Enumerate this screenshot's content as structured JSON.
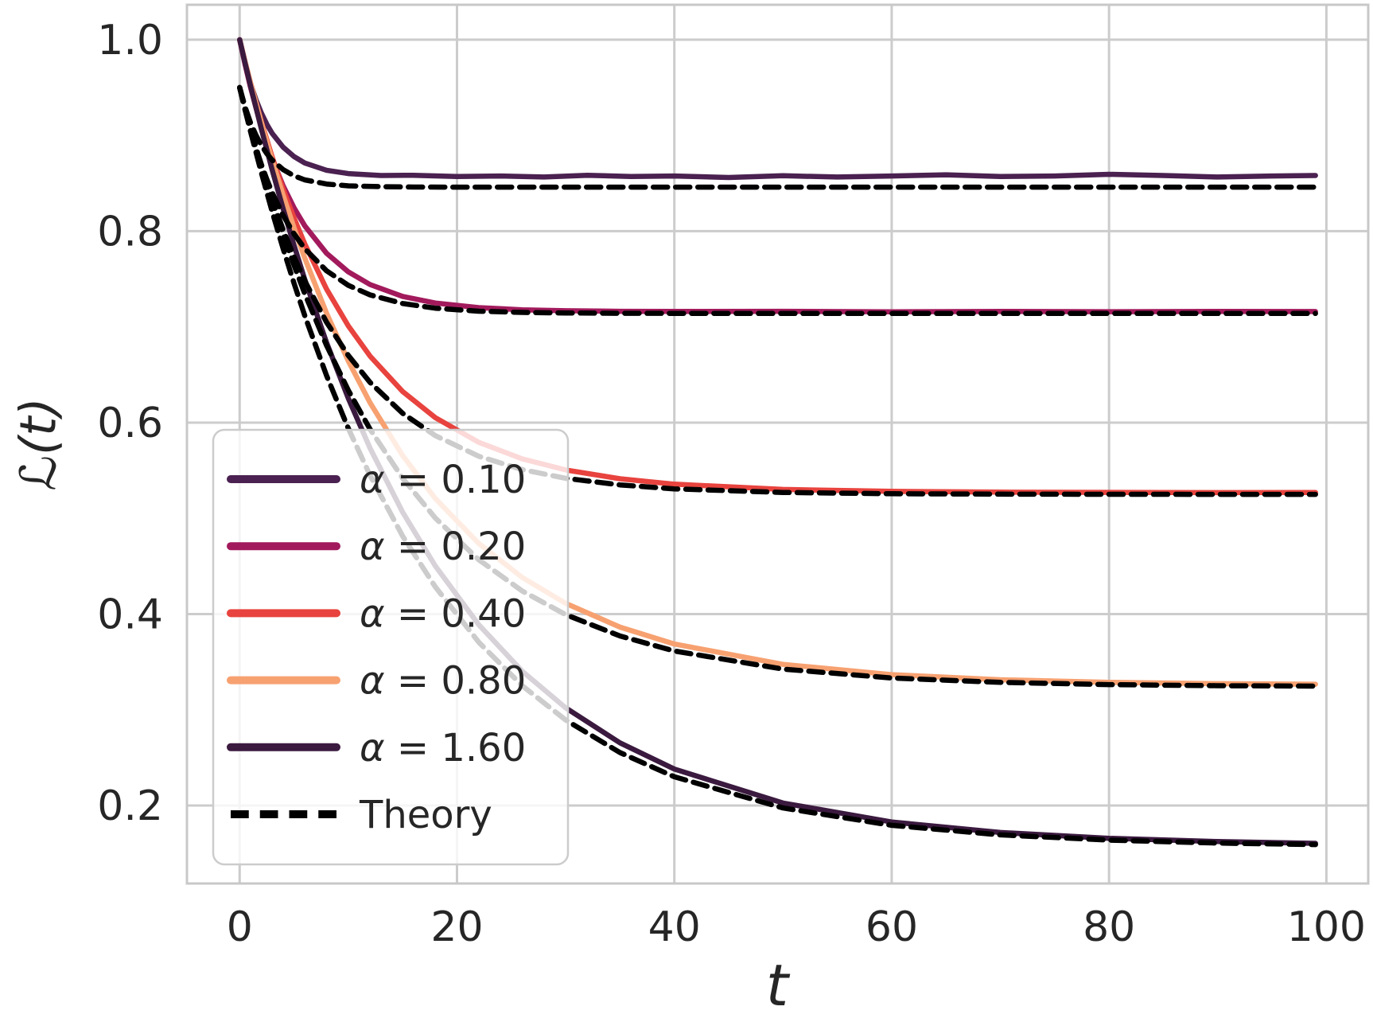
{
  "figure": {
    "background": "#ffffff",
    "text_color": "#262626",
    "grid_color": "#cccccc",
    "spine_color": "#c8c8c8",
    "legend_fill": "rgba(255,255,255,0.8)",
    "legend_border": "#cccccc"
  },
  "chart_data": {
    "type": "line",
    "title": "",
    "xlabel": "t",
    "ylabel": "ℒ(t)",
    "grid": true,
    "legend_position": "lower left",
    "xlim": [
      -4.85,
      103.85
    ],
    "ylim": [
      0.1185,
      1.0365
    ],
    "x_ticks": [
      {
        "v": 0,
        "label": "0"
      },
      {
        "v": 20,
        "label": "20"
      },
      {
        "v": 40,
        "label": "40"
      },
      {
        "v": 60,
        "label": "60"
      },
      {
        "v": 80,
        "label": "80"
      },
      {
        "v": 100,
        "label": "100"
      }
    ],
    "y_ticks": [
      {
        "v": 0.2,
        "label": "0.2"
      },
      {
        "v": 0.4,
        "label": "0.4"
      },
      {
        "v": 0.6,
        "label": "0.6"
      },
      {
        "v": 0.8,
        "label": "0.8"
      },
      {
        "v": 1.0,
        "label": "1.0"
      }
    ],
    "legend_entries": [
      {
        "label": "α = 0.10",
        "color": "#4a2150",
        "dash": false
      },
      {
        "label": "α = 0.20",
        "color": "#a21a5c",
        "dash": false
      },
      {
        "label": "α = 0.40",
        "color": "#e8433e",
        "dash": false
      },
      {
        "label": "α = 0.80",
        "color": "#f7a171",
        "dash": false
      },
      {
        "label": "α = 1.60",
        "color": "#3b1a3f",
        "dash": false
      },
      {
        "label": "Theory",
        "color": "#000000",
        "dash": true
      }
    ],
    "series": [
      {
        "name": "sim-alpha-0.10",
        "alpha": 0.1,
        "kind": "simulation",
        "color": "#4a2150",
        "dash": false,
        "points": [
          [
            0,
            1.0
          ],
          [
            0.5,
            0.975
          ],
          [
            1,
            0.9543
          ],
          [
            1.5,
            0.9373
          ],
          [
            2,
            0.9233
          ],
          [
            2.5,
            0.9117
          ],
          [
            3,
            0.9021
          ],
          [
            4,
            0.8877
          ],
          [
            5,
            0.8779
          ],
          [
            6,
            0.8712
          ],
          [
            8,
            0.8636
          ],
          [
            10,
            0.8601
          ],
          [
            13,
            0.8581
          ],
          [
            16,
            0.8584
          ],
          [
            20,
            0.8571
          ],
          [
            24,
            0.8576
          ],
          [
            28,
            0.8566
          ],
          [
            32,
            0.8584
          ],
          [
            36,
            0.8571
          ],
          [
            40,
            0.8576
          ],
          [
            45,
            0.8561
          ],
          [
            50,
            0.8579
          ],
          [
            55,
            0.8566
          ],
          [
            60,
            0.8576
          ],
          [
            65,
            0.8589
          ],
          [
            70,
            0.8571
          ],
          [
            75,
            0.8576
          ],
          [
            80,
            0.8594
          ],
          [
            85,
            0.8581
          ],
          [
            90,
            0.8566
          ],
          [
            95,
            0.8576
          ],
          [
            99,
            0.8581
          ]
        ]
      },
      {
        "name": "sim-alpha-0.20",
        "alpha": 0.2,
        "kind": "simulation",
        "color": "#a21a5c",
        "dash": false,
        "points": [
          [
            0,
            1.0
          ],
          [
            0.5,
            0.974
          ],
          [
            1,
            0.9503
          ],
          [
            1.5,
            0.9289
          ],
          [
            2,
            0.9093
          ],
          [
            2.5,
            0.8916
          ],
          [
            3,
            0.8754
          ],
          [
            4,
            0.8475
          ],
          [
            5,
            0.8245
          ],
          [
            6,
            0.8055
          ],
          [
            8,
            0.7769
          ],
          [
            10,
            0.7574
          ],
          [
            12,
            0.7442
          ],
          [
            15,
            0.7318
          ],
          [
            18,
            0.7249
          ],
          [
            22,
            0.7201
          ],
          [
            26,
            0.7179
          ],
          [
            30,
            0.7169
          ],
          [
            35,
            0.7163
          ],
          [
            40,
            0.7161
          ],
          [
            50,
            0.7163
          ],
          [
            60,
            0.7158
          ],
          [
            70,
            0.7162
          ],
          [
            80,
            0.7159
          ],
          [
            90,
            0.7162
          ],
          [
            99,
            0.716
          ]
        ]
      },
      {
        "name": "sim-alpha-0.40",
        "alpha": 0.4,
        "kind": "simulation",
        "color": "#e8433e",
        "dash": false,
        "points": [
          [
            0,
            1.0
          ],
          [
            0.5,
            0.977
          ],
          [
            1,
            0.955
          ],
          [
            2,
            0.9142
          ],
          [
            3,
            0.8774
          ],
          [
            4,
            0.844
          ],
          [
            5,
            0.8139
          ],
          [
            6,
            0.7866
          ],
          [
            8,
            0.7395
          ],
          [
            10,
            0.701
          ],
          [
            12,
            0.6695
          ],
          [
            15,
            0.6325
          ],
          [
            18,
            0.6052
          ],
          [
            22,
            0.5794
          ],
          [
            26,
            0.5621
          ],
          [
            30,
            0.5506
          ],
          [
            35,
            0.5413
          ],
          [
            40,
            0.5357
          ],
          [
            50,
            0.5302
          ],
          [
            60,
            0.5282
          ],
          [
            70,
            0.5274
          ],
          [
            80,
            0.5271
          ],
          [
            90,
            0.5269
          ],
          [
            99,
            0.527
          ]
        ]
      },
      {
        "name": "sim-alpha-0.80",
        "alpha": 0.8,
        "kind": "simulation",
        "color": "#f7a171",
        "dash": false,
        "points": [
          [
            0,
            1.0
          ],
          [
            0.5,
            0.977
          ],
          [
            1,
            0.9551
          ],
          [
            2,
            0.9132
          ],
          [
            3,
            0.8741
          ],
          [
            4,
            0.8376
          ],
          [
            5,
            0.8035
          ],
          [
            6,
            0.7717
          ],
          [
            8,
            0.7143
          ],
          [
            10,
            0.6643
          ],
          [
            12,
            0.6207
          ],
          [
            15,
            0.5655
          ],
          [
            18,
            0.5207
          ],
          [
            22,
            0.4738
          ],
          [
            26,
            0.4382
          ],
          [
            30,
            0.4112
          ],
          [
            35,
            0.3863
          ],
          [
            40,
            0.3687
          ],
          [
            50,
            0.3474
          ],
          [
            60,
            0.3367
          ],
          [
            70,
            0.3314
          ],
          [
            80,
            0.3287
          ],
          [
            90,
            0.3273
          ],
          [
            99,
            0.3267
          ]
        ]
      },
      {
        "name": "sim-alpha-1.60",
        "alpha": 1.6,
        "kind": "simulation",
        "color": "#3b1a3f",
        "dash": false,
        "points": [
          [
            0,
            1.0
          ],
          [
            0.5,
            0.9756
          ],
          [
            1,
            0.952
          ],
          [
            2,
            0.9066
          ],
          [
            3,
            0.8638
          ],
          [
            4,
            0.8234
          ],
          [
            5,
            0.7853
          ],
          [
            6,
            0.7494
          ],
          [
            8,
            0.6837
          ],
          [
            10,
            0.6252
          ],
          [
            12,
            0.5733
          ],
          [
            15,
            0.5064
          ],
          [
            18,
            0.4503
          ],
          [
            22,
            0.3889
          ],
          [
            26,
            0.3403
          ],
          [
            30,
            0.302
          ],
          [
            35,
            0.2654
          ],
          [
            40,
            0.2381
          ],
          [
            50,
            0.2026
          ],
          [
            60,
            0.1828
          ],
          [
            70,
            0.1718
          ],
          [
            80,
            0.1657
          ],
          [
            90,
            0.1623
          ],
          [
            99,
            0.1605
          ]
        ]
      },
      {
        "name": "theory-alpha-0.10",
        "alpha": 0.1,
        "kind": "theory",
        "color": "#000000",
        "dash": true,
        "points": [
          [
            0,
            0.95
          ],
          [
            0.5,
            0.9297
          ],
          [
            1,
            0.9133
          ],
          [
            1.5,
            0.9002
          ],
          [
            2,
            0.8896
          ],
          [
            2.5,
            0.8811
          ],
          [
            3,
            0.8742
          ],
          [
            4,
            0.8643
          ],
          [
            5,
            0.8578
          ],
          [
            6,
            0.8536
          ],
          [
            8,
            0.8492
          ],
          [
            10,
            0.8473
          ],
          [
            13,
            0.8465
          ],
          [
            16,
            0.8461
          ],
          [
            20,
            0.846
          ],
          [
            30,
            0.846
          ],
          [
            40,
            0.846
          ],
          [
            50,
            0.846
          ],
          [
            60,
            0.846
          ],
          [
            70,
            0.846
          ],
          [
            80,
            0.846
          ],
          [
            90,
            0.846
          ],
          [
            99,
            0.846
          ]
        ]
      },
      {
        "name": "theory-alpha-0.20",
        "alpha": 0.2,
        "kind": "theory",
        "color": "#000000",
        "dash": true,
        "points": [
          [
            0,
            0.95
          ],
          [
            0.5,
            0.9267
          ],
          [
            1,
            0.9056
          ],
          [
            1.5,
            0.8867
          ],
          [
            2,
            0.8696
          ],
          [
            2.5,
            0.8542
          ],
          [
            3,
            0.8403
          ],
          [
            4,
            0.8166
          ],
          [
            5,
            0.7973
          ],
          [
            6,
            0.7816
          ],
          [
            8,
            0.7586
          ],
          [
            10,
            0.7434
          ],
          [
            12,
            0.7334
          ],
          [
            15,
            0.7244
          ],
          [
            18,
            0.7195
          ],
          [
            22,
            0.7164
          ],
          [
            26,
            0.7151
          ],
          [
            30,
            0.7145
          ],
          [
            35,
            0.7142
          ],
          [
            40,
            0.7141
          ],
          [
            50,
            0.714
          ],
          [
            60,
            0.714
          ],
          [
            70,
            0.714
          ],
          [
            80,
            0.714
          ],
          [
            90,
            0.714
          ],
          [
            99,
            0.714
          ]
        ]
      },
      {
        "name": "theory-alpha-0.40",
        "alpha": 0.4,
        "kind": "theory",
        "color": "#000000",
        "dash": true,
        "points": [
          [
            0,
            0.95
          ],
          [
            0.5,
            0.9277
          ],
          [
            1,
            0.9067
          ],
          [
            2,
            0.8678
          ],
          [
            3,
            0.8328
          ],
          [
            4,
            0.8015
          ],
          [
            5,
            0.7733
          ],
          [
            6,
            0.748
          ],
          [
            8,
            0.7049
          ],
          [
            10,
            0.6701
          ],
          [
            12,
            0.642
          ],
          [
            15,
            0.6097
          ],
          [
            18,
            0.5864
          ],
          [
            22,
            0.5649
          ],
          [
            26,
            0.5509
          ],
          [
            30,
            0.5418
          ],
          [
            35,
            0.5349
          ],
          [
            40,
            0.5308
          ],
          [
            50,
            0.527
          ],
          [
            60,
            0.5257
          ],
          [
            70,
            0.5253
          ],
          [
            80,
            0.5251
          ],
          [
            90,
            0.525
          ],
          [
            99,
            0.525
          ]
        ]
      },
      {
        "name": "theory-alpha-0.80",
        "alpha": 0.8,
        "kind": "theory",
        "color": "#000000",
        "dash": true,
        "points": [
          [
            0,
            0.95
          ],
          [
            0.5,
            0.9284
          ],
          [
            1,
            0.9075
          ],
          [
            2,
            0.8679
          ],
          [
            3,
            0.8309
          ],
          [
            4,
            0.7965
          ],
          [
            5,
            0.7644
          ],
          [
            6,
            0.7345
          ],
          [
            8,
            0.6806
          ],
          [
            10,
            0.6337
          ],
          [
            12,
            0.5931
          ],
          [
            15,
            0.5418
          ],
          [
            18,
            0.5003
          ],
          [
            22,
            0.4568
          ],
          [
            26,
            0.4241
          ],
          [
            30,
            0.3994
          ],
          [
            35,
            0.3771
          ],
          [
            40,
            0.3614
          ],
          [
            50,
            0.3425
          ],
          [
            60,
            0.3332
          ],
          [
            70,
            0.3286
          ],
          [
            80,
            0.3263
          ],
          [
            90,
            0.3251
          ],
          [
            99,
            0.3247
          ]
        ]
      },
      {
        "name": "theory-alpha-1.60",
        "alpha": 1.6,
        "kind": "theory",
        "color": "#000000",
        "dash": true,
        "points": [
          [
            0,
            0.95
          ],
          [
            0.5,
            0.9267
          ],
          [
            1,
            0.9042
          ],
          [
            2,
            0.8609
          ],
          [
            3,
            0.8202
          ],
          [
            4,
            0.7818
          ],
          [
            5,
            0.7456
          ],
          [
            6,
            0.7115
          ],
          [
            8,
            0.6492
          ],
          [
            10,
            0.5939
          ],
          [
            12,
            0.5449
          ],
          [
            15,
            0.4814
          ],
          [
            18,
            0.4284
          ],
          [
            22,
            0.3706
          ],
          [
            26,
            0.3251
          ],
          [
            30,
            0.2893
          ],
          [
            35,
            0.2553
          ],
          [
            40,
            0.23
          ],
          [
            50,
            0.1974
          ],
          [
            60,
            0.1793
          ],
          [
            70,
            0.1693
          ],
          [
            80,
            0.1638
          ],
          [
            90,
            0.1607
          ],
          [
            99,
            0.1592
          ]
        ]
      }
    ]
  }
}
